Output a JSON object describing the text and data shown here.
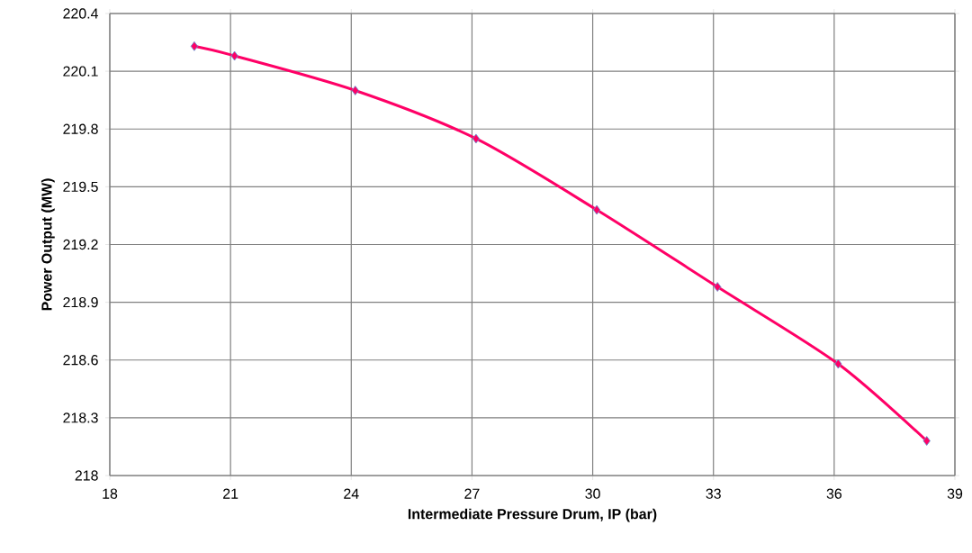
{
  "chart_data": {
    "type": "line",
    "xlabel": "Intermediate Pressure Drum, IP (bar)",
    "ylabel": "Power Output (MW)",
    "x": [
      20.1,
      21.1,
      24.1,
      27.1,
      30.1,
      33.1,
      36.1,
      38.3
    ],
    "series": [
      {
        "color": "#ff0066",
        "values": [
          220.23,
          220.18,
          220.0,
          219.75,
          219.38,
          218.98,
          218.58,
          218.18
        ]
      }
    ],
    "xlim": [
      18,
      39
    ],
    "xticks": [
      18,
      21,
      24,
      27,
      30,
      33,
      36,
      39
    ],
    "ylim": [
      218,
      220.4
    ],
    "yticks": [
      218,
      218.3,
      218.6,
      218.9,
      219.2,
      219.5,
      219.8,
      220.1,
      220.4
    ],
    "grid": true,
    "marker": "diamond",
    "line_style": "solid"
  }
}
